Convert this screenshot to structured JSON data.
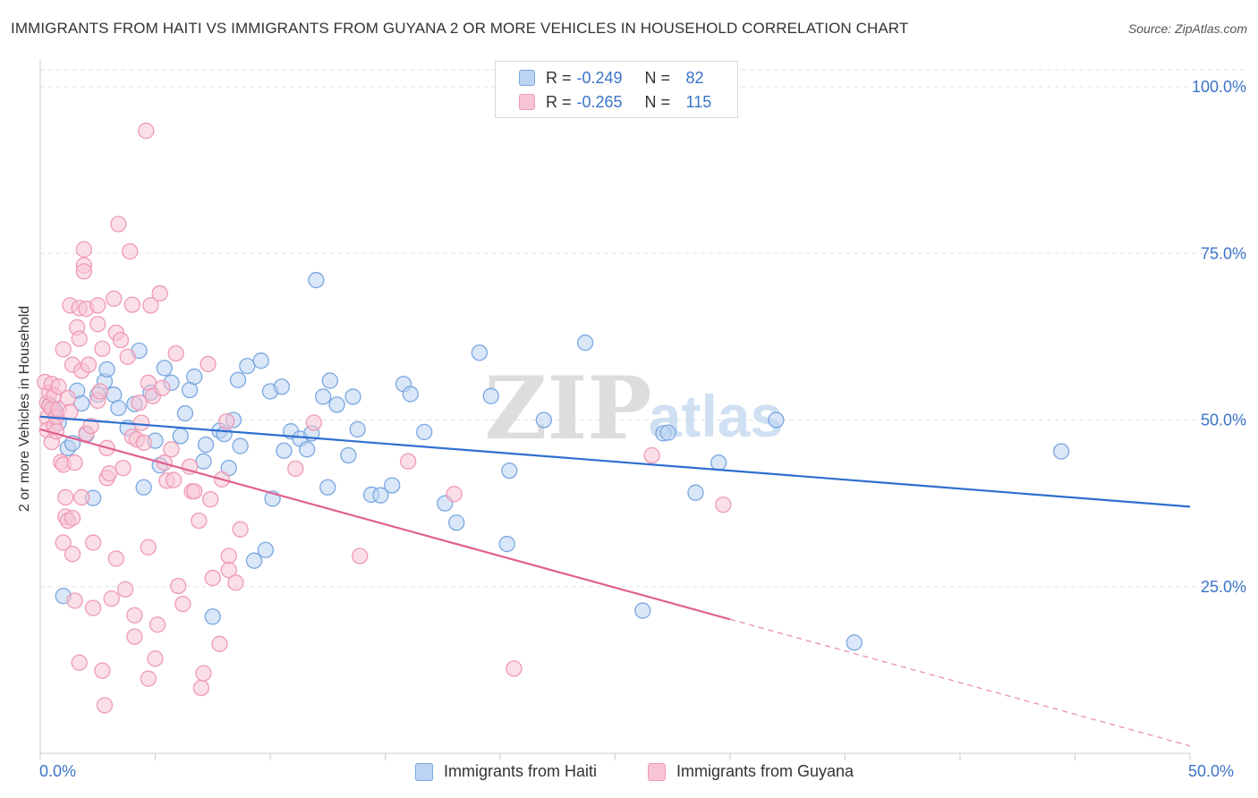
{
  "title": "IMMIGRANTS FROM HAITI VS IMMIGRANTS FROM GUYANA 2 OR MORE VEHICLES IN HOUSEHOLD CORRELATION CHART",
  "source": "Source: ZipAtlas.com",
  "watermark": {
    "zip": "ZIP",
    "atlas": "atlas"
  },
  "legend": {
    "r_label": "R =",
    "n_label": "N =",
    "rows": [
      {
        "r": "-0.249",
        "n": "82"
      },
      {
        "r": "-0.265",
        "n": "115"
      }
    ]
  },
  "chart_data": {
    "type": "scatter",
    "ylabel": "2 or more Vehicles in Household",
    "xlim": [
      0,
      50
    ],
    "ylim": [
      0,
      100
    ],
    "x_tick_labels": [
      "0.0%",
      "50.0%"
    ],
    "y_ticks": [
      25,
      50,
      75,
      100
    ],
    "y_tick_labels": [
      "25.0%",
      "50.0%",
      "75.0%",
      "100.0%"
    ],
    "grid": true,
    "series": [
      {
        "name": "Immigrants from Haiti",
        "color": "#7aa7e0",
        "fill": "#bcd3f2",
        "trend": {
          "x": [
            0,
            50
          ],
          "y": [
            50.5,
            37.0
          ],
          "color": "#2e6fd0"
        },
        "points": [
          [
            0.4,
            52.3
          ],
          [
            0.6,
            51.6
          ],
          [
            0.8,
            49.6
          ],
          [
            1.0,
            23.6
          ],
          [
            1.2,
            45.8
          ],
          [
            1.4,
            46.5
          ],
          [
            1.6,
            54.4
          ],
          [
            1.8,
            52.5
          ],
          [
            2.0,
            47.8
          ],
          [
            2.3,
            38.3
          ],
          [
            2.5,
            53.8
          ],
          [
            2.8,
            55.8
          ],
          [
            2.9,
            57.6
          ],
          [
            3.2,
            53.8
          ],
          [
            3.4,
            51.8
          ],
          [
            3.8,
            48.8
          ],
          [
            4.1,
            52.4
          ],
          [
            4.3,
            60.4
          ],
          [
            4.5,
            39.9
          ],
          [
            4.8,
            54.1
          ],
          [
            5.0,
            46.9
          ],
          [
            5.2,
            43.2
          ],
          [
            5.4,
            57.8
          ],
          [
            5.7,
            55.6
          ],
          [
            6.1,
            47.6
          ],
          [
            6.3,
            51.0
          ],
          [
            6.5,
            54.5
          ],
          [
            6.7,
            56.5
          ],
          [
            7.1,
            43.8
          ],
          [
            7.2,
            46.3
          ],
          [
            7.5,
            20.5
          ],
          [
            7.8,
            48.4
          ],
          [
            8.0,
            47.9
          ],
          [
            8.2,
            42.8
          ],
          [
            8.4,
            50.0
          ],
          [
            8.7,
            46.1
          ],
          [
            8.6,
            56.0
          ],
          [
            9.0,
            58.1
          ],
          [
            9.3,
            28.9
          ],
          [
            9.6,
            58.9
          ],
          [
            9.8,
            30.5
          ],
          [
            10.0,
            54.3
          ],
          [
            10.1,
            38.2
          ],
          [
            10.5,
            55.0
          ],
          [
            10.6,
            45.4
          ],
          [
            10.9,
            48.3
          ],
          [
            11.3,
            47.2
          ],
          [
            11.6,
            45.6
          ],
          [
            11.8,
            48.0
          ],
          [
            12.0,
            71.0
          ],
          [
            12.3,
            53.5
          ],
          [
            12.5,
            39.9
          ],
          [
            12.6,
            55.9
          ],
          [
            12.9,
            52.3
          ],
          [
            13.4,
            44.7
          ],
          [
            13.6,
            53.5
          ],
          [
            13.8,
            48.6
          ],
          [
            14.4,
            38.8
          ],
          [
            14.8,
            38.7
          ],
          [
            15.3,
            40.2
          ],
          [
            15.8,
            55.4
          ],
          [
            16.1,
            53.9
          ],
          [
            16.7,
            48.2
          ],
          [
            17.6,
            37.5
          ],
          [
            18.1,
            34.6
          ],
          [
            19.1,
            60.1
          ],
          [
            19.6,
            53.6
          ],
          [
            20.3,
            31.4
          ],
          [
            20.4,
            42.4
          ],
          [
            21.9,
            50.0
          ],
          [
            23.7,
            61.6
          ],
          [
            26.2,
            21.4
          ],
          [
            27.1,
            48.0
          ],
          [
            27.3,
            48.1
          ],
          [
            28.5,
            39.1
          ],
          [
            29.5,
            43.6
          ],
          [
            32.0,
            50.0
          ],
          [
            35.4,
            16.6
          ],
          [
            44.4,
            45.3
          ]
        ]
      },
      {
        "name": "Immigrants from Guyana",
        "color": "#ef9ab5",
        "fill": "#f7c4d3",
        "trend": {
          "x": [
            0,
            30
          ],
          "y": [
            48.6,
            20.1
          ],
          "color": "#e0608f"
        },
        "trend_dashed": {
          "x": [
            30,
            50
          ],
          "y": [
            20.1,
            1.1
          ],
          "color": "#e890ad"
        },
        "points": [
          [
            0.2,
            55.7
          ],
          [
            0.3,
            52.6
          ],
          [
            0.3,
            50.3
          ],
          [
            0.3,
            48.5
          ],
          [
            0.4,
            54.1
          ],
          [
            0.4,
            52.1
          ],
          [
            0.5,
            55.4
          ],
          [
            0.5,
            51.7
          ],
          [
            0.5,
            46.7
          ],
          [
            0.6,
            53.7
          ],
          [
            0.6,
            49.1
          ],
          [
            0.7,
            48.3
          ],
          [
            0.7,
            50.5
          ],
          [
            0.8,
            55.0
          ],
          [
            0.8,
            51.6
          ],
          [
            0.9,
            43.7
          ],
          [
            1.0,
            31.6
          ],
          [
            1.0,
            60.6
          ],
          [
            1.0,
            43.3
          ],
          [
            1.1,
            38.4
          ],
          [
            1.1,
            35.5
          ],
          [
            1.2,
            34.9
          ],
          [
            1.2,
            53.3
          ],
          [
            1.3,
            51.2
          ],
          [
            1.3,
            67.2
          ],
          [
            1.4,
            58.3
          ],
          [
            1.4,
            35.3
          ],
          [
            1.4,
            29.9
          ],
          [
            1.5,
            43.6
          ],
          [
            1.5,
            22.9
          ],
          [
            1.6,
            63.9
          ],
          [
            1.7,
            62.2
          ],
          [
            1.7,
            66.8
          ],
          [
            1.7,
            13.6
          ],
          [
            1.8,
            57.4
          ],
          [
            1.8,
            38.4
          ],
          [
            1.9,
            75.6
          ],
          [
            1.9,
            73.2
          ],
          [
            1.9,
            72.3
          ],
          [
            2.0,
            66.7
          ],
          [
            2.0,
            48.0
          ],
          [
            2.1,
            58.3
          ],
          [
            2.2,
            49.1
          ],
          [
            2.3,
            21.8
          ],
          [
            2.3,
            31.6
          ],
          [
            2.5,
            64.4
          ],
          [
            2.5,
            67.2
          ],
          [
            2.5,
            52.9
          ],
          [
            2.6,
            54.3
          ],
          [
            2.7,
            12.4
          ],
          [
            2.7,
            60.7
          ],
          [
            2.8,
            7.2
          ],
          [
            2.9,
            41.3
          ],
          [
            2.9,
            45.8
          ],
          [
            3.0,
            42.0
          ],
          [
            3.1,
            23.2
          ],
          [
            3.2,
            68.2
          ],
          [
            3.3,
            63.1
          ],
          [
            3.3,
            29.2
          ],
          [
            3.4,
            79.4
          ],
          [
            3.5,
            62.0
          ],
          [
            3.6,
            42.8
          ],
          [
            3.7,
            24.6
          ],
          [
            3.8,
            59.5
          ],
          [
            3.9,
            75.3
          ],
          [
            4.0,
            67.3
          ],
          [
            4.0,
            47.5
          ],
          [
            4.1,
            20.7
          ],
          [
            4.1,
            17.5
          ],
          [
            4.2,
            47.1
          ],
          [
            4.3,
            52.6
          ],
          [
            4.4,
            49.6
          ],
          [
            4.5,
            46.6
          ],
          [
            4.6,
            93.4
          ],
          [
            4.7,
            11.2
          ],
          [
            4.7,
            55.6
          ],
          [
            4.7,
            30.9
          ],
          [
            4.8,
            67.2
          ],
          [
            4.9,
            53.6
          ],
          [
            5.0,
            14.2
          ],
          [
            5.1,
            19.3
          ],
          [
            5.2,
            69.0
          ],
          [
            5.3,
            54.8
          ],
          [
            5.4,
            43.6
          ],
          [
            5.5,
            40.9
          ],
          [
            5.7,
            45.6
          ],
          [
            5.8,
            41.0
          ],
          [
            5.9,
            60.0
          ],
          [
            6.0,
            25.1
          ],
          [
            6.2,
            22.4
          ],
          [
            6.5,
            43.0
          ],
          [
            6.6,
            39.3
          ],
          [
            6.7,
            39.3
          ],
          [
            6.9,
            34.9
          ],
          [
            7.0,
            9.8
          ],
          [
            7.1,
            12.0
          ],
          [
            7.3,
            58.4
          ],
          [
            7.4,
            38.1
          ],
          [
            7.5,
            26.3
          ],
          [
            7.8,
            16.4
          ],
          [
            7.9,
            41.1
          ],
          [
            8.1,
            49.8
          ],
          [
            8.2,
            29.6
          ],
          [
            8.2,
            27.5
          ],
          [
            8.5,
            25.6
          ],
          [
            8.7,
            33.6
          ],
          [
            11.1,
            42.7
          ],
          [
            11.9,
            49.6
          ],
          [
            13.9,
            29.6
          ],
          [
            16.0,
            43.8
          ],
          [
            18.0,
            38.9
          ],
          [
            20.6,
            12.7
          ],
          [
            26.6,
            44.7
          ],
          [
            29.7,
            37.3
          ]
        ]
      }
    ]
  }
}
